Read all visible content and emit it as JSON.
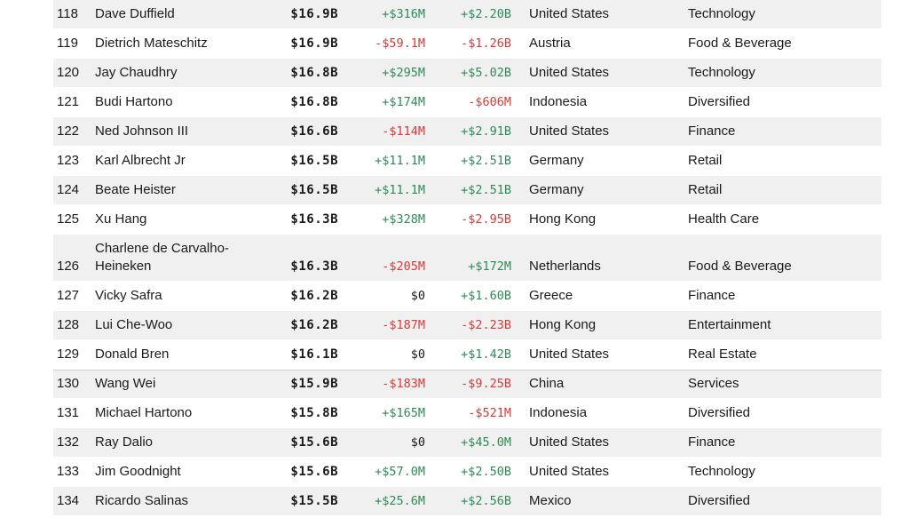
{
  "colors": {
    "positive": "#2e8b57",
    "negative": "#d63a3a",
    "row_shade": "#f0f0f0"
  },
  "rows": [
    {
      "rank": "118",
      "name": "Dave Duffield",
      "worth": "$16.9B",
      "last_change": "+$316M",
      "ytd_change": "+$2.20B",
      "country": "United States",
      "industry": "Technology"
    },
    {
      "rank": "119",
      "name": "Dietrich Mateschitz",
      "worth": "$16.9B",
      "last_change": "-$59.1M",
      "ytd_change": "-$1.26B",
      "country": "Austria",
      "industry": "Food & Beverage"
    },
    {
      "rank": "120",
      "name": "Jay Chaudhry",
      "worth": "$16.8B",
      "last_change": "+$295M",
      "ytd_change": "+$5.02B",
      "country": "United States",
      "industry": "Technology"
    },
    {
      "rank": "121",
      "name": "Budi Hartono",
      "worth": "$16.8B",
      "last_change": "+$174M",
      "ytd_change": "-$606M",
      "country": "Indonesia",
      "industry": "Diversified"
    },
    {
      "rank": "122",
      "name": "Ned Johnson III",
      "worth": "$16.6B",
      "last_change": "-$114M",
      "ytd_change": "+$2.91B",
      "country": "United States",
      "industry": "Finance"
    },
    {
      "rank": "123",
      "name": "Karl Albrecht Jr",
      "worth": "$16.5B",
      "last_change": "+$11.1M",
      "ytd_change": "+$2.51B",
      "country": "Germany",
      "industry": "Retail"
    },
    {
      "rank": "124",
      "name": "Beate Heister",
      "worth": "$16.5B",
      "last_change": "+$11.1M",
      "ytd_change": "+$2.51B",
      "country": "Germany",
      "industry": "Retail"
    },
    {
      "rank": "125",
      "name": "Xu Hang",
      "worth": "$16.3B",
      "last_change": "+$328M",
      "ytd_change": "-$2.95B",
      "country": "Hong Kong",
      "industry": "Health Care"
    },
    {
      "rank": "126",
      "name": "Charlene de Carvalho-Heineken",
      "worth": "$16.3B",
      "last_change": "-$205M",
      "ytd_change": "+$172M",
      "country": "Netherlands",
      "industry": "Food & Beverage"
    },
    {
      "rank": "127",
      "name": "Vicky Safra",
      "worth": "$16.2B",
      "last_change": "$0",
      "ytd_change": "+$1.60B",
      "country": "Greece",
      "industry": "Finance"
    },
    {
      "rank": "128",
      "name": "Lui Che-Woo",
      "worth": "$16.2B",
      "last_change": "-$187M",
      "ytd_change": "-$2.23B",
      "country": "Hong Kong",
      "industry": "Entertainment"
    },
    {
      "rank": "129",
      "name": "Donald Bren",
      "worth": "$16.1B",
      "last_change": "$0",
      "ytd_change": "+$1.42B",
      "country": "United States",
      "industry": "Real Estate"
    },
    {
      "rank": "130",
      "name": "Wang Wei",
      "worth": "$15.9B",
      "last_change": "-$183M",
      "ytd_change": "-$9.25B",
      "country": "China",
      "industry": "Services"
    },
    {
      "rank": "131",
      "name": "Michael Hartono",
      "worth": "$15.8B",
      "last_change": "+$165M",
      "ytd_change": "-$521M",
      "country": "Indonesia",
      "industry": "Diversified"
    },
    {
      "rank": "132",
      "name": "Ray Dalio",
      "worth": "$15.6B",
      "last_change": "$0",
      "ytd_change": "+$45.0M",
      "country": "United States",
      "industry": "Finance"
    },
    {
      "rank": "133",
      "name": "Jim Goodnight",
      "worth": "$15.6B",
      "last_change": "+$57.0M",
      "ytd_change": "+$2.50B",
      "country": "United States",
      "industry": "Technology"
    },
    {
      "rank": "134",
      "name": "Ricardo Salinas",
      "worth": "$15.5B",
      "last_change": "+$25.6M",
      "ytd_change": "+$2.56B",
      "country": "Mexico",
      "industry": "Diversified"
    }
  ]
}
